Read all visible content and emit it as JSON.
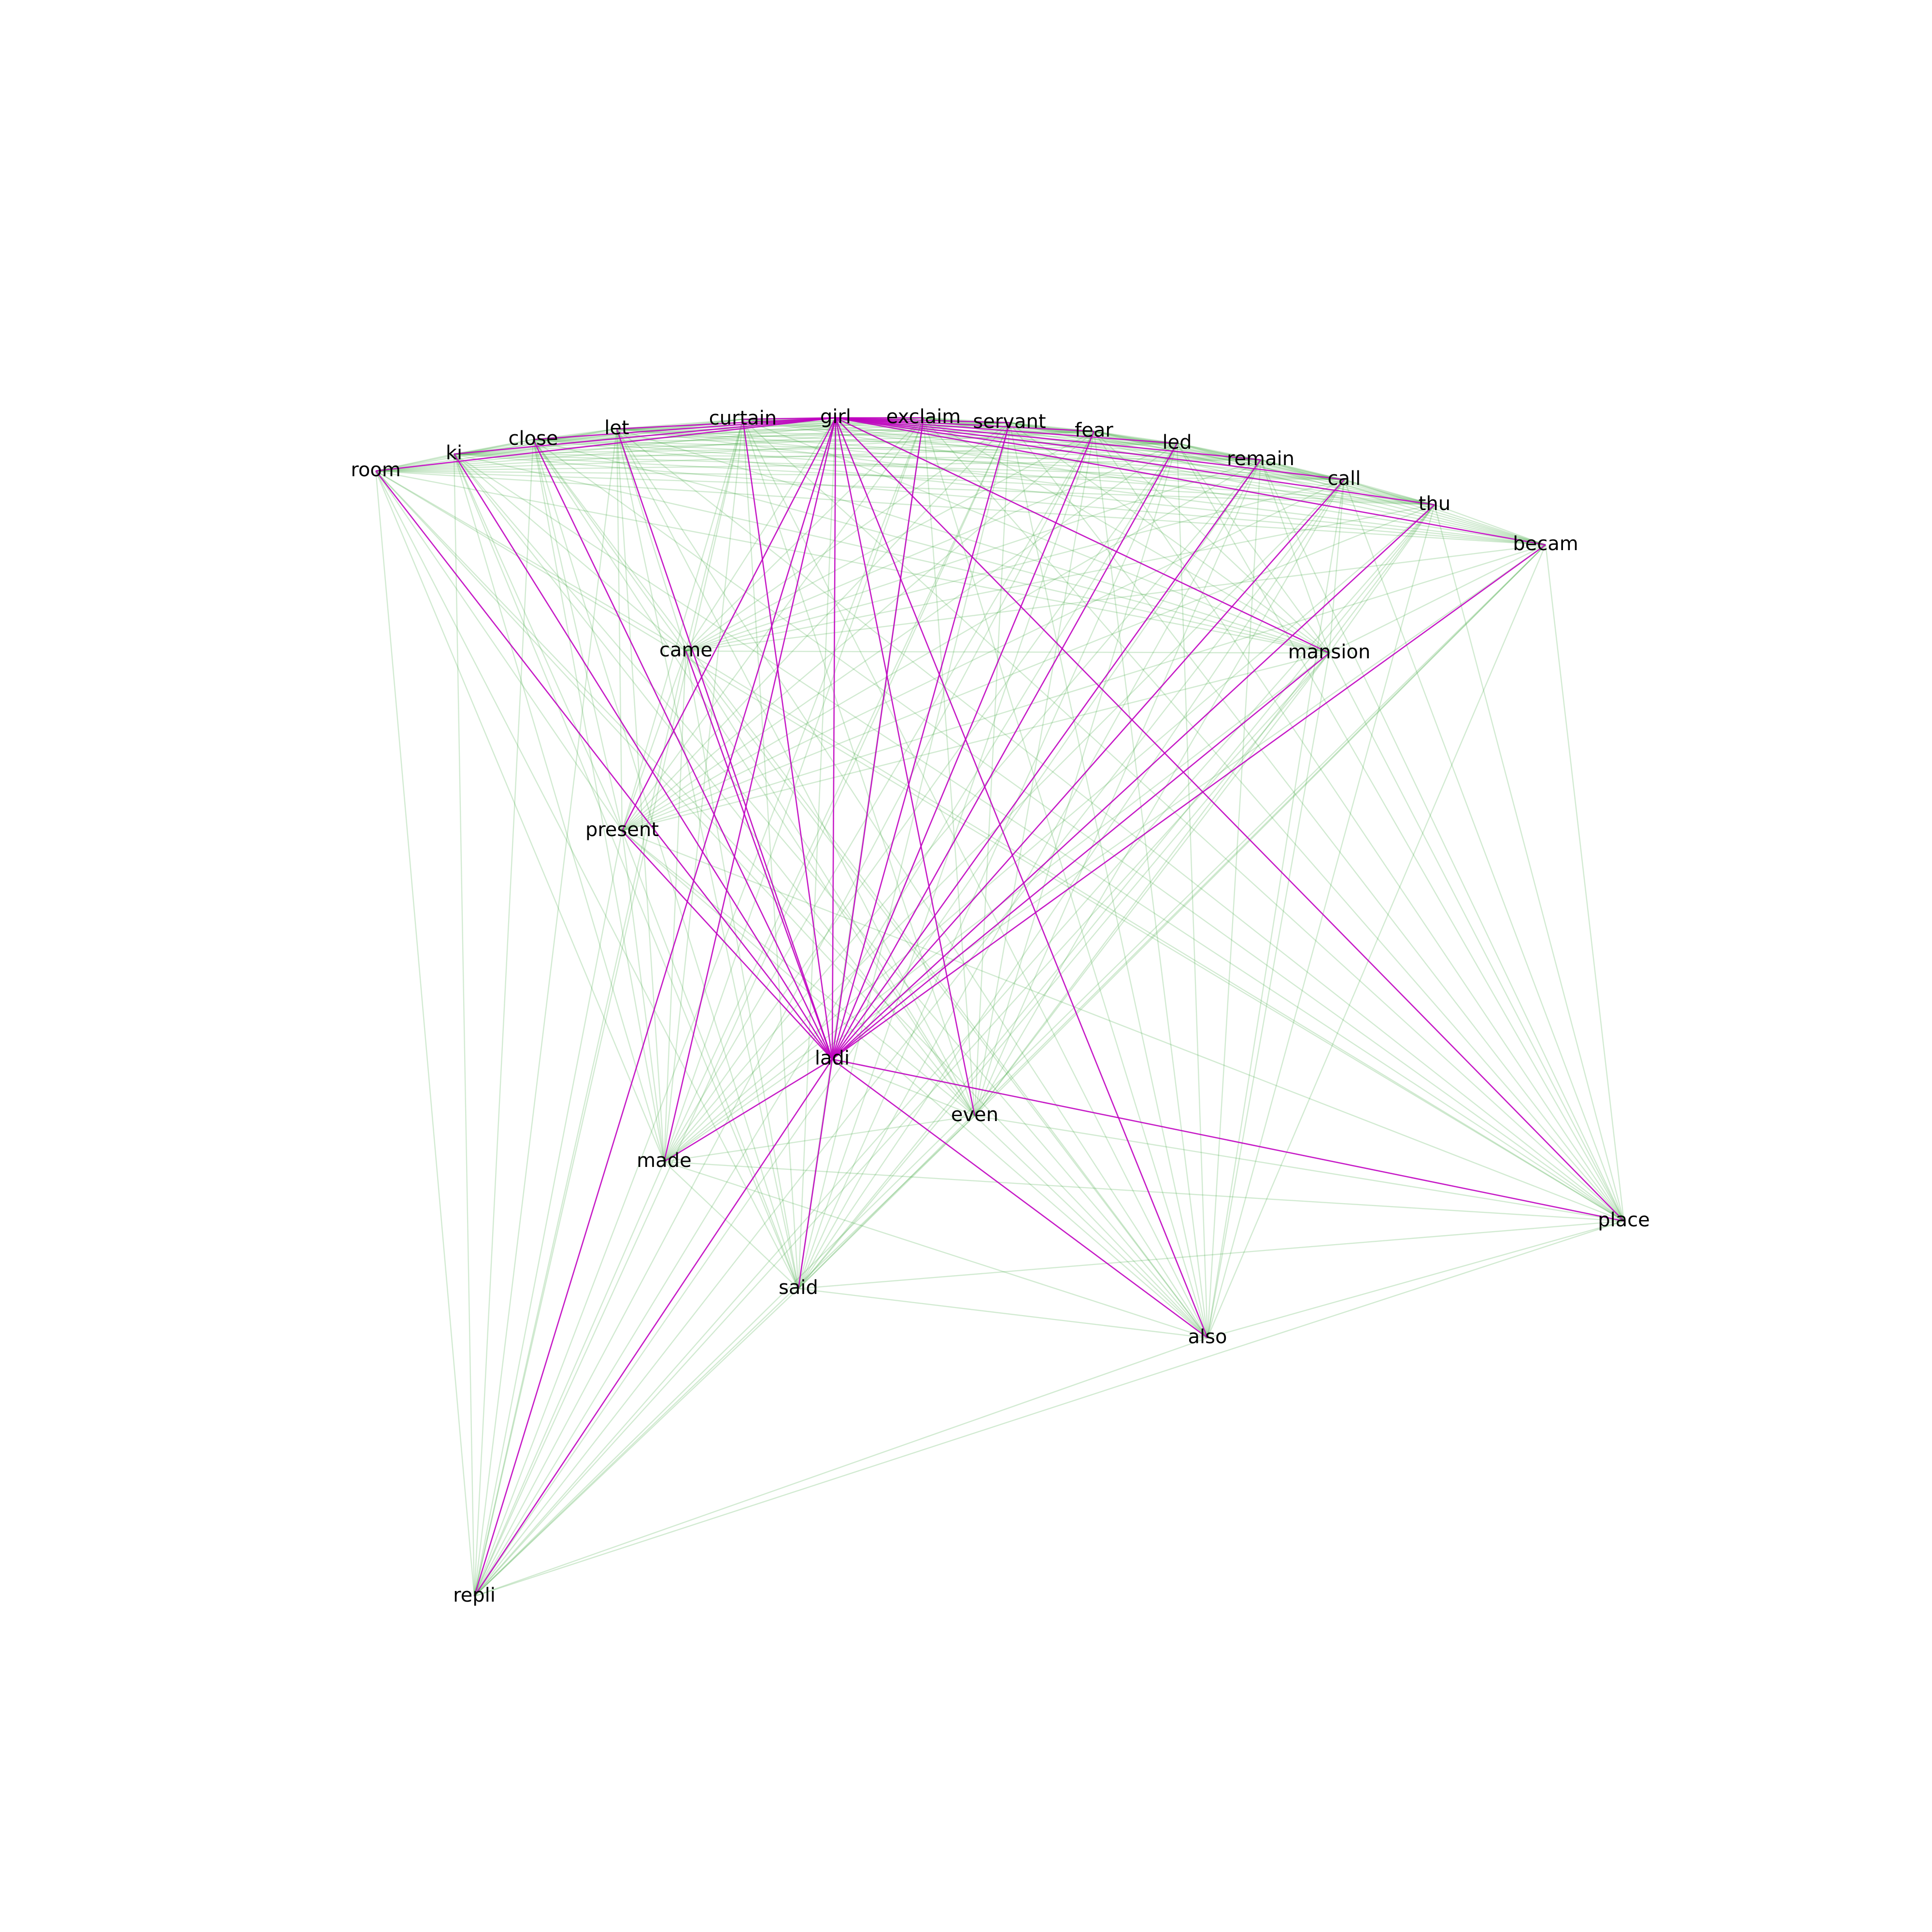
{
  "colors": {
    "background": "#ffffff",
    "weak_edge": "#2ca02c",
    "strong_edge": "#c000c0",
    "label": "#000000"
  },
  "nodes": [
    {
      "id": "girl",
      "label": "girl"
    },
    {
      "id": "exclaim",
      "label": "exclaim"
    },
    {
      "id": "curtain",
      "label": "curtain"
    },
    {
      "id": "servant",
      "label": "servant"
    },
    {
      "id": "fear",
      "label": "fear"
    },
    {
      "id": "let",
      "label": "let"
    },
    {
      "id": "close",
      "label": "close"
    },
    {
      "id": "led",
      "label": "led"
    },
    {
      "id": "ki",
      "label": "ki"
    },
    {
      "id": "remain",
      "label": "remain"
    },
    {
      "id": "room",
      "label": "room"
    },
    {
      "id": "call",
      "label": "call"
    },
    {
      "id": "thu",
      "label": "thu"
    },
    {
      "id": "becam",
      "label": "becam"
    },
    {
      "id": "came",
      "label": "came"
    },
    {
      "id": "mansion",
      "label": "mansion"
    },
    {
      "id": "present",
      "label": "present"
    },
    {
      "id": "ladi",
      "label": "ladi"
    },
    {
      "id": "even",
      "label": "even"
    },
    {
      "id": "made",
      "label": "made"
    },
    {
      "id": "place",
      "label": "place"
    },
    {
      "id": "said",
      "label": "said"
    },
    {
      "id": "also",
      "label": "also"
    },
    {
      "id": "repli",
      "label": "repli"
    }
  ],
  "strong_edges": [
    [
      "girl",
      "exclaim"
    ],
    [
      "girl",
      "curtain"
    ],
    [
      "girl",
      "servant"
    ],
    [
      "girl",
      "fear"
    ],
    [
      "girl",
      "let"
    ],
    [
      "girl",
      "close"
    ],
    [
      "girl",
      "led"
    ],
    [
      "girl",
      "ki"
    ],
    [
      "girl",
      "remain"
    ],
    [
      "girl",
      "room"
    ],
    [
      "girl",
      "call"
    ],
    [
      "girl",
      "thu"
    ],
    [
      "girl",
      "becam"
    ],
    [
      "girl",
      "mansion"
    ],
    [
      "girl",
      "present"
    ],
    [
      "girl",
      "ladi"
    ],
    [
      "girl",
      "even"
    ],
    [
      "girl",
      "made"
    ],
    [
      "girl",
      "place"
    ],
    [
      "girl",
      "also"
    ],
    [
      "girl",
      "repli"
    ],
    [
      "ladi",
      "exclaim"
    ],
    [
      "ladi",
      "curtain"
    ],
    [
      "ladi",
      "servant"
    ],
    [
      "ladi",
      "fear"
    ],
    [
      "ladi",
      "let"
    ],
    [
      "ladi",
      "close"
    ],
    [
      "ladi",
      "led"
    ],
    [
      "ladi",
      "ki"
    ],
    [
      "ladi",
      "remain"
    ],
    [
      "ladi",
      "room"
    ],
    [
      "ladi",
      "call"
    ],
    [
      "ladi",
      "thu"
    ],
    [
      "ladi",
      "becam"
    ],
    [
      "ladi",
      "came"
    ],
    [
      "ladi",
      "mansion"
    ],
    [
      "ladi",
      "present"
    ],
    [
      "ladi",
      "made"
    ],
    [
      "ladi",
      "place"
    ],
    [
      "ladi",
      "said"
    ],
    [
      "ladi",
      "also"
    ],
    [
      "ladi",
      "repli"
    ]
  ],
  "weak_edges": "all-other-pairs"
}
